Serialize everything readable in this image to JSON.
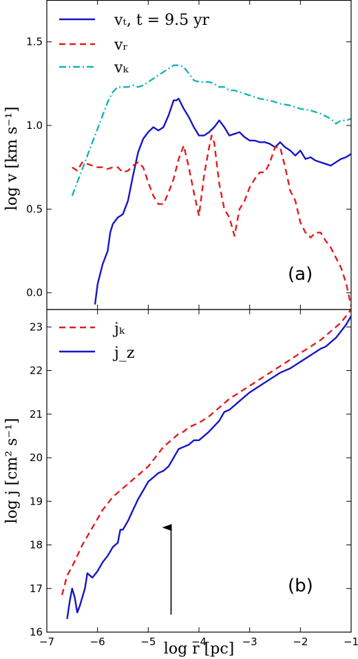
{
  "chart_data": [
    {
      "type": "line",
      "panel_label": "(a)",
      "xlabel": "",
      "ylabel": "log v [km s⁻¹]",
      "xlim": [
        -7,
        -1
      ],
      "ylim": [
        -0.1,
        1.75
      ],
      "yticks": [
        "0.0",
        "0.5",
        "1.0",
        "1.5"
      ],
      "legend_position": "top-left",
      "series": [
        {
          "name": "vₜ, t = 9.5 yr",
          "color": "#1414c8",
          "dash": "solid",
          "x": [
            -6.05,
            -6.0,
            -5.9,
            -5.8,
            -5.75,
            -5.7,
            -5.6,
            -5.5,
            -5.4,
            -5.3,
            -5.2,
            -5.1,
            -5.0,
            -4.9,
            -4.8,
            -4.7,
            -4.6,
            -4.5,
            -4.45,
            -4.4,
            -4.35,
            -4.3,
            -4.2,
            -4.1,
            -4.0,
            -3.9,
            -3.8,
            -3.7,
            -3.6,
            -3.5,
            -3.4,
            -3.3,
            -3.2,
            -3.1,
            -3.0,
            -2.9,
            -2.8,
            -2.7,
            -2.6,
            -2.5,
            -2.4,
            -2.3,
            -2.2,
            -2.1,
            -2.0,
            -1.9,
            -1.8,
            -1.7,
            -1.6,
            -1.5,
            -1.4,
            -1.3,
            -1.2,
            -1.1,
            -1.0
          ],
          "y": [
            -0.07,
            0.05,
            0.17,
            0.25,
            0.36,
            0.41,
            0.45,
            0.47,
            0.55,
            0.7,
            0.84,
            0.92,
            0.96,
            0.99,
            0.97,
            0.99,
            1.06,
            1.15,
            1.15,
            1.16,
            1.13,
            1.1,
            1.05,
            0.99,
            0.94,
            0.94,
            0.96,
            0.99,
            1.03,
            0.99,
            0.94,
            0.95,
            0.96,
            0.93,
            0.91,
            0.91,
            0.9,
            0.9,
            0.89,
            0.87,
            0.9,
            0.87,
            0.85,
            0.82,
            0.85,
            0.8,
            0.81,
            0.79,
            0.78,
            0.77,
            0.76,
            0.78,
            0.8,
            0.81,
            0.83
          ]
        },
        {
          "name": "vᵣ",
          "color": "#e41a1c",
          "dash": "dashed",
          "x": [
            -6.5,
            -6.4,
            -6.3,
            -6.2,
            -6.1,
            -6.0,
            -5.9,
            -5.8,
            -5.7,
            -5.6,
            -5.5,
            -5.4,
            -5.3,
            -5.2,
            -5.1,
            -5.0,
            -4.9,
            -4.8,
            -4.7,
            -4.6,
            -4.5,
            -4.4,
            -4.3,
            -4.2,
            -4.1,
            -4.0,
            -3.95,
            -3.9,
            -3.8,
            -3.75,
            -3.7,
            -3.6,
            -3.5,
            -3.4,
            -3.3,
            -3.2,
            -3.1,
            -3.0,
            -2.9,
            -2.8,
            -2.7,
            -2.6,
            -2.5,
            -2.4,
            -2.3,
            -2.2,
            -2.1,
            -2.0,
            -1.9,
            -1.8,
            -1.7,
            -1.6,
            -1.5,
            -1.4,
            -1.3,
            -1.2,
            -1.1,
            -1.0
          ],
          "y": [
            0.75,
            0.73,
            0.78,
            0.77,
            0.76,
            0.75,
            0.75,
            0.74,
            0.75,
            0.75,
            0.72,
            0.73,
            0.76,
            0.78,
            0.75,
            0.66,
            0.58,
            0.53,
            0.53,
            0.6,
            0.68,
            0.8,
            0.88,
            0.75,
            0.6,
            0.46,
            0.58,
            0.7,
            0.87,
            0.94,
            0.9,
            0.65,
            0.5,
            0.45,
            0.34,
            0.5,
            0.55,
            0.63,
            0.68,
            0.72,
            0.72,
            0.78,
            0.87,
            0.87,
            0.75,
            0.61,
            0.55,
            0.42,
            0.36,
            0.33,
            0.36,
            0.36,
            0.31,
            0.27,
            0.21,
            0.15,
            0.06,
            -0.08
          ]
        },
        {
          "name": "vₖ",
          "color": "#17b3b8",
          "dash": "dashdot",
          "x": [
            -6.5,
            -6.4,
            -6.3,
            -6.2,
            -6.1,
            -6.0,
            -5.9,
            -5.8,
            -5.7,
            -5.6,
            -5.5,
            -5.4,
            -5.3,
            -5.2,
            -5.1,
            -5.0,
            -4.9,
            -4.8,
            -4.7,
            -4.6,
            -4.5,
            -4.4,
            -4.3,
            -4.2,
            -4.1,
            -4.0,
            -3.9,
            -3.8,
            -3.7,
            -3.6,
            -3.5,
            -3.4,
            -3.3,
            -3.2,
            -3.1,
            -3.0,
            -2.8,
            -2.6,
            -2.4,
            -2.2,
            -2.0,
            -1.8,
            -1.6,
            -1.4,
            -1.3,
            -1.2,
            -1.1,
            -1.0
          ],
          "y": [
            0.58,
            0.66,
            0.74,
            0.82,
            0.9,
            0.98,
            1.06,
            1.14,
            1.2,
            1.23,
            1.23,
            1.23,
            1.24,
            1.23,
            1.24,
            1.26,
            1.28,
            1.3,
            1.32,
            1.34,
            1.36,
            1.36,
            1.35,
            1.31,
            1.27,
            1.26,
            1.26,
            1.26,
            1.25,
            1.23,
            1.23,
            1.21,
            1.21,
            1.2,
            1.19,
            1.18,
            1.16,
            1.15,
            1.13,
            1.12,
            1.1,
            1.09,
            1.07,
            1.04,
            1.01,
            1.03,
            1.03,
            1.04
          ]
        }
      ]
    },
    {
      "type": "line",
      "panel_label": "(b)",
      "xlabel": "log r [pc]",
      "ylabel": "log j [cm² s⁻¹]",
      "xlim": [
        -7,
        -1
      ],
      "ylim": [
        16,
        23.4
      ],
      "xticks": [
        "−7",
        "−6",
        "−5",
        "−4",
        "−3",
        "−2",
        "−1"
      ],
      "yticks": [
        "16",
        "17",
        "18",
        "19",
        "20",
        "21",
        "22",
        "23"
      ],
      "legend_position": "top-left",
      "annotation_arrow": {
        "x": -4.55,
        "y_from": 16.4,
        "y_to": 18.4
      },
      "series": [
        {
          "name": "jₖ",
          "color": "#e41a1c",
          "dash": "dashed",
          "x": [
            -6.7,
            -6.6,
            -6.5,
            -6.4,
            -6.3,
            -6.2,
            -6.1,
            -6.0,
            -5.9,
            -5.8,
            -5.7,
            -5.6,
            -5.5,
            -5.4,
            -5.3,
            -5.2,
            -5.1,
            -5.0,
            -4.9,
            -4.8,
            -4.7,
            -4.6,
            -4.5,
            -4.4,
            -4.3,
            -4.2,
            -4.1,
            -4.0,
            -3.8,
            -3.6,
            -3.4,
            -3.2,
            -3.0,
            -2.8,
            -2.6,
            -2.4,
            -2.2,
            -2.0,
            -1.8,
            -1.6,
            -1.4,
            -1.2,
            -1.0
          ],
          "y": [
            16.85,
            17.3,
            17.5,
            17.75,
            18.0,
            18.2,
            18.4,
            18.6,
            18.8,
            18.95,
            19.1,
            19.2,
            19.3,
            19.4,
            19.5,
            19.6,
            19.7,
            19.8,
            19.95,
            20.1,
            20.25,
            20.35,
            20.45,
            20.55,
            20.6,
            20.7,
            20.75,
            20.8,
            20.95,
            21.15,
            21.35,
            21.5,
            21.65,
            21.8,
            21.95,
            22.1,
            22.25,
            22.4,
            22.55,
            22.7,
            22.9,
            23.1,
            23.4
          ]
        },
        {
          "name": "j_z",
          "color": "#1414c8",
          "dash": "solid",
          "x": [
            -6.6,
            -6.55,
            -6.5,
            -6.45,
            -6.4,
            -6.35,
            -6.3,
            -6.25,
            -6.2,
            -6.15,
            -6.1,
            -6.0,
            -5.9,
            -5.8,
            -5.7,
            -5.6,
            -5.55,
            -5.5,
            -5.4,
            -5.3,
            -5.2,
            -5.1,
            -5.0,
            -4.9,
            -4.8,
            -4.7,
            -4.6,
            -4.5,
            -4.4,
            -4.3,
            -4.2,
            -4.1,
            -4.0,
            -3.9,
            -3.8,
            -3.6,
            -3.5,
            -3.4,
            -3.2,
            -3.0,
            -2.8,
            -2.6,
            -2.4,
            -2.2,
            -2.0,
            -1.8,
            -1.6,
            -1.5,
            -1.4,
            -1.3,
            -1.2,
            -1.1,
            -1.0
          ],
          "y": [
            16.3,
            16.7,
            17.0,
            16.8,
            16.45,
            16.6,
            16.8,
            17.0,
            17.35,
            17.3,
            17.25,
            17.4,
            17.6,
            17.75,
            17.95,
            18.05,
            18.35,
            18.35,
            18.55,
            18.8,
            19.05,
            19.25,
            19.45,
            19.55,
            19.65,
            19.7,
            19.8,
            20.0,
            20.2,
            20.25,
            20.3,
            20.4,
            20.4,
            20.5,
            20.6,
            20.85,
            21.05,
            21.1,
            21.3,
            21.5,
            21.65,
            21.8,
            21.95,
            22.05,
            22.2,
            22.35,
            22.5,
            22.55,
            22.65,
            22.75,
            22.9,
            23.05,
            23.25
          ]
        }
      ]
    }
  ]
}
